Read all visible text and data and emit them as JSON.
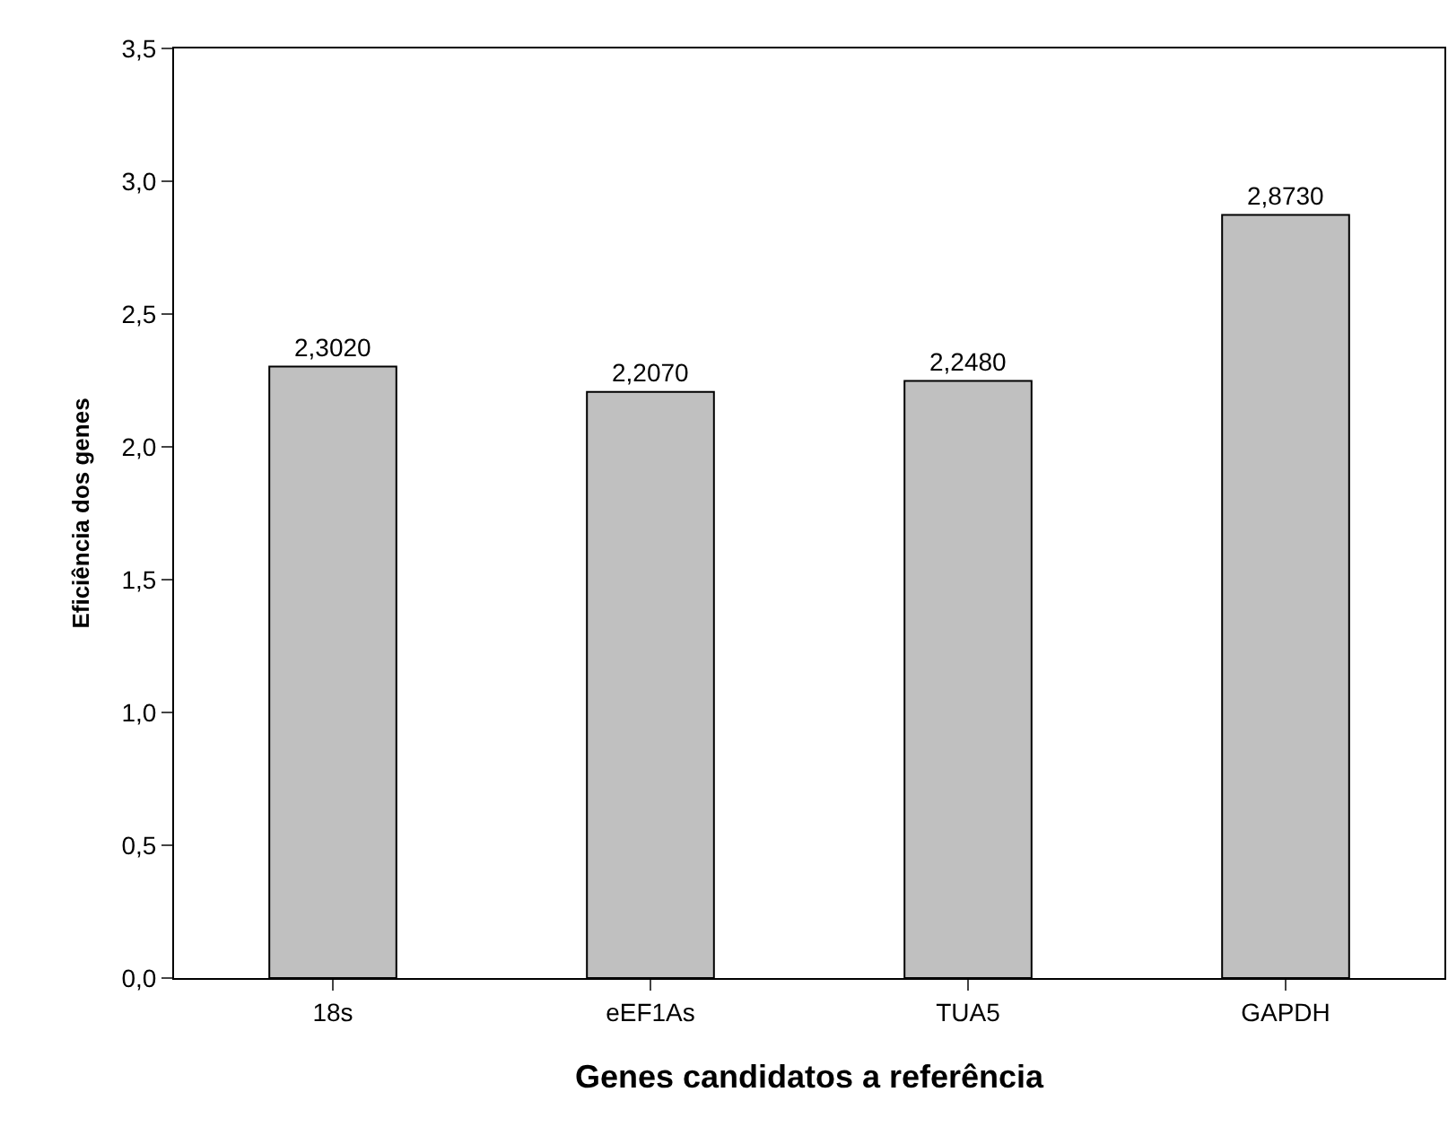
{
  "chart_data": {
    "type": "bar",
    "xlabel": "Genes candidatos a referência",
    "ylabel": "Eficiência dos genes",
    "categories": [
      "18s",
      "eEF1As",
      "TUA5",
      "GAPDH"
    ],
    "values": [
      2.302,
      2.207,
      2.248,
      2.873
    ],
    "value_labels": [
      "2,3020",
      "2,2070",
      "2,2480",
      "2,8730"
    ],
    "color": "#c0c0c0",
    "ylim": [
      0,
      3.5
    ],
    "yticks": [
      {
        "value": 0,
        "label": "0,0"
      },
      {
        "value": 0.5,
        "label": "0,5"
      },
      {
        "value": 1,
        "label": "1,0"
      },
      {
        "value": 1.5,
        "label": "1,5"
      },
      {
        "value": 2,
        "label": "2,0"
      },
      {
        "value": 2.5,
        "label": "2,5"
      },
      {
        "value": 3,
        "label": "3,0"
      },
      {
        "value": 3.5,
        "label": "3,5"
      }
    ],
    "legend": false
  }
}
